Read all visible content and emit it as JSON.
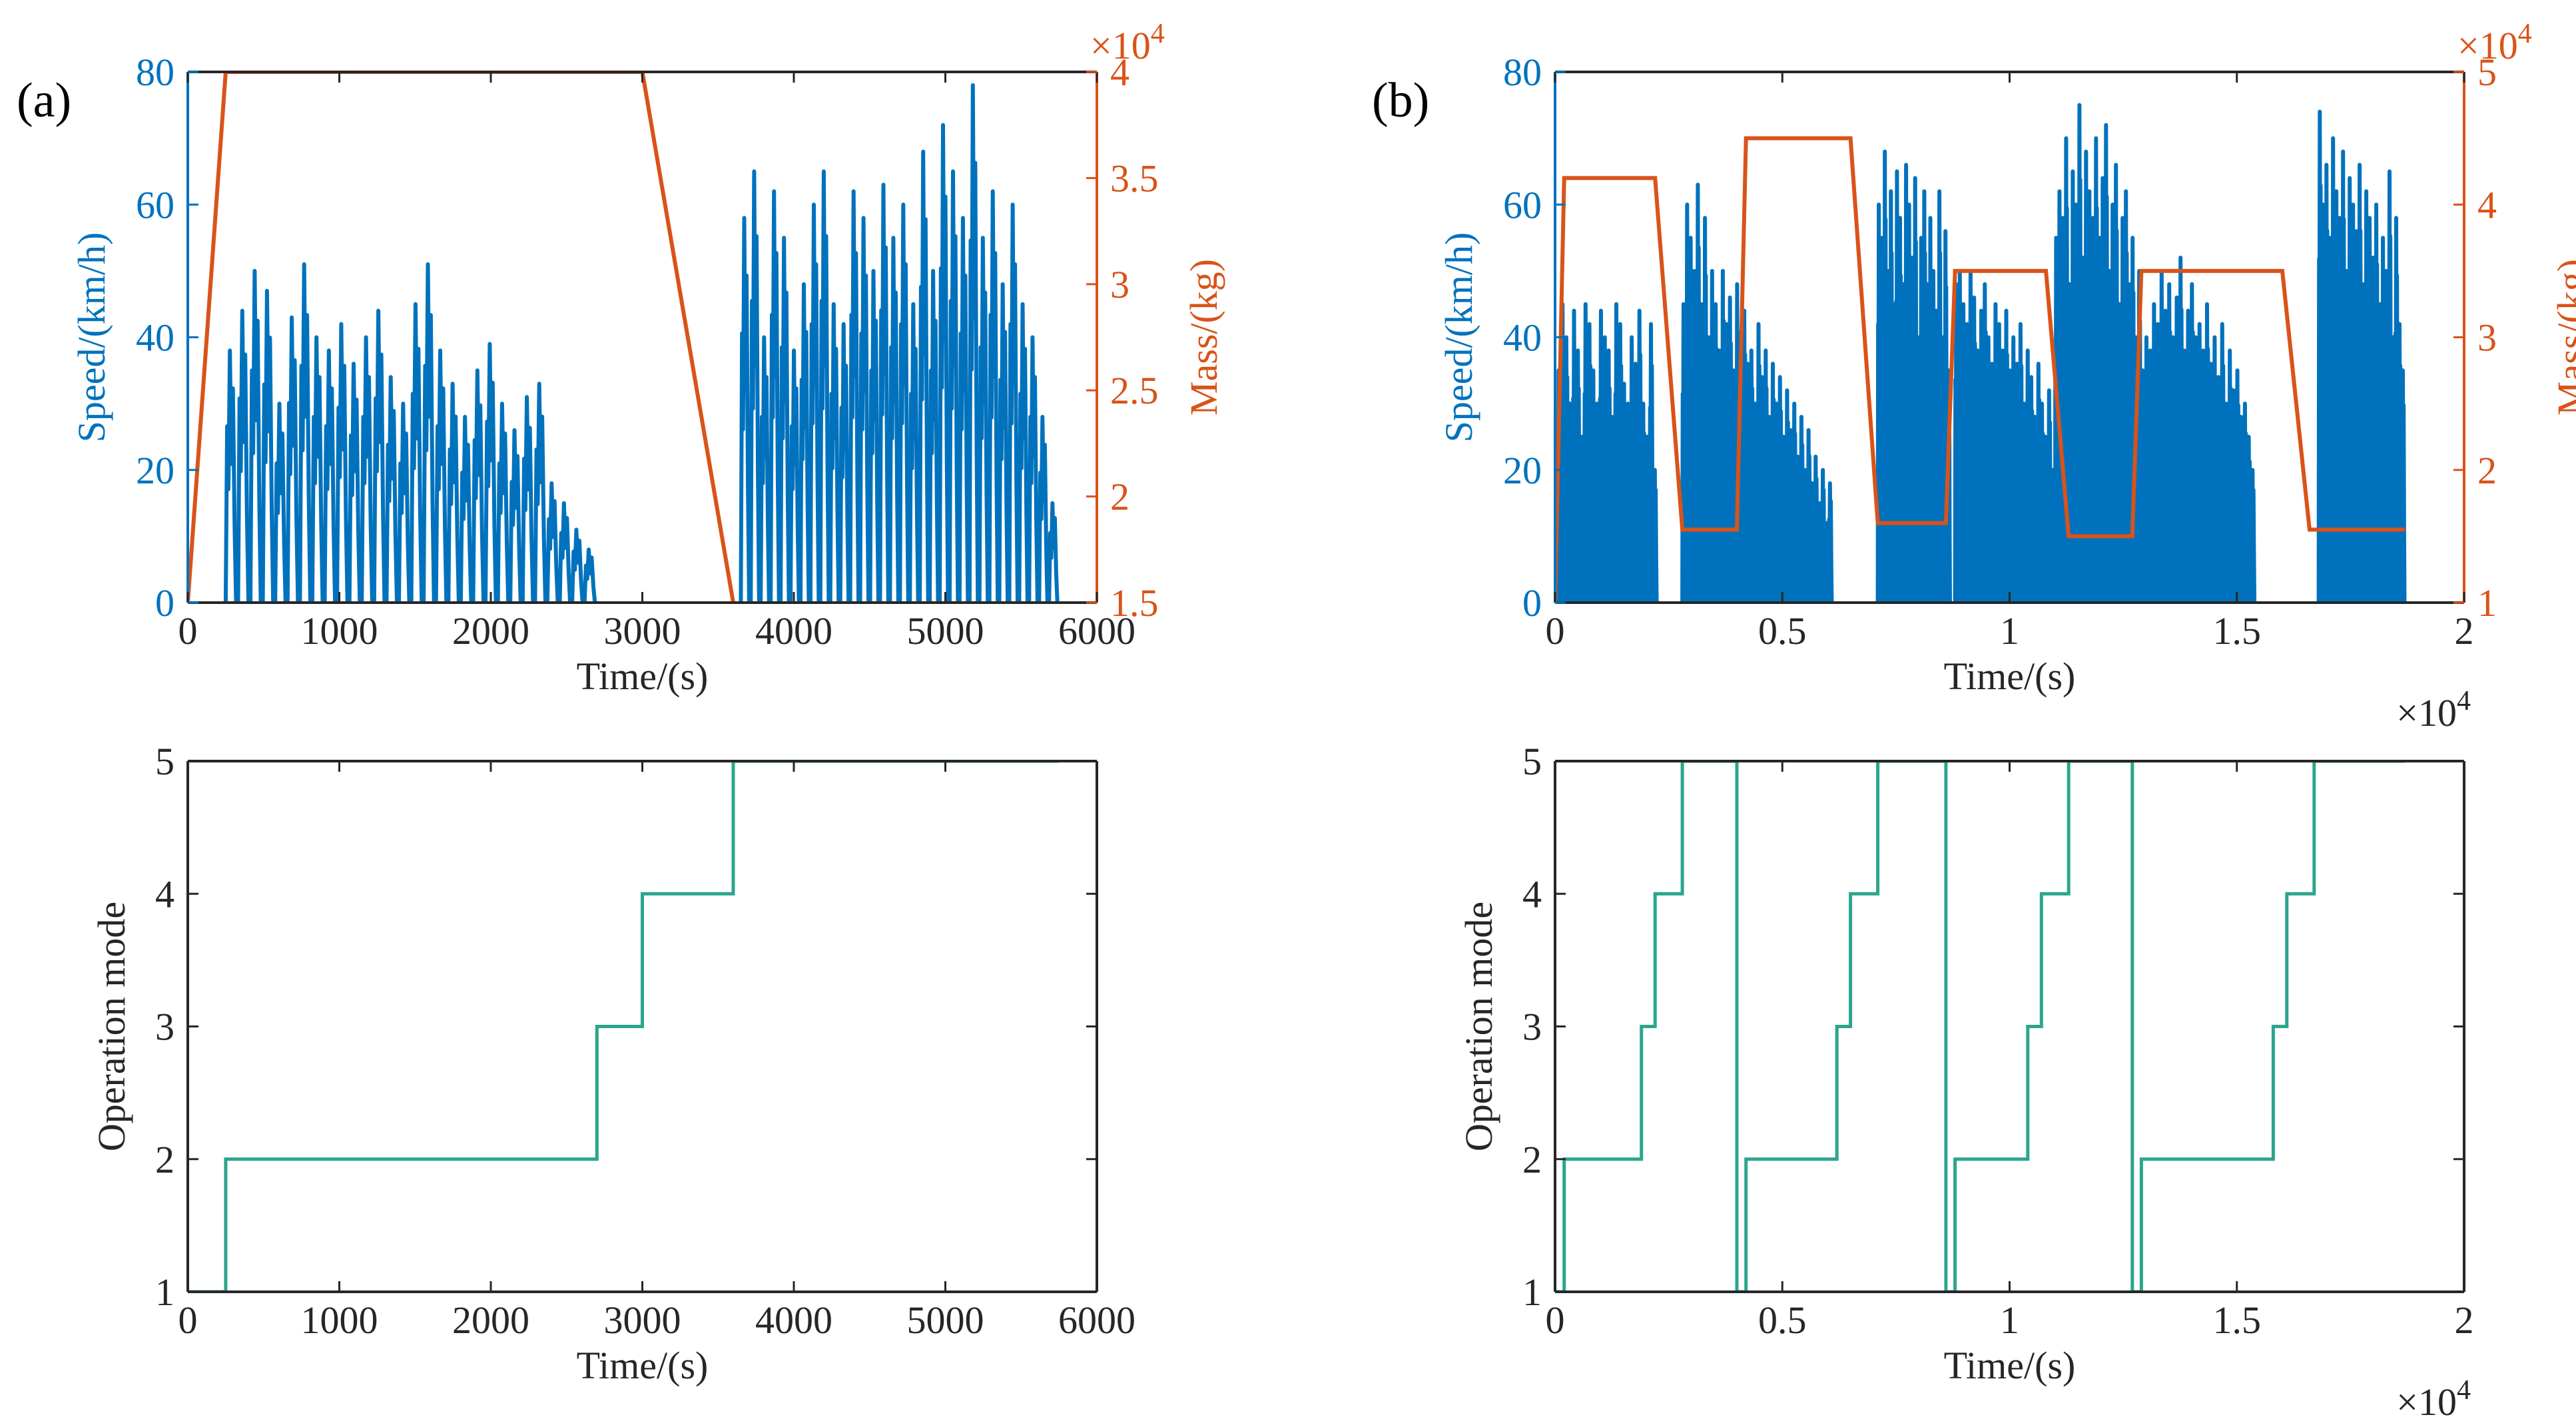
{
  "figure": {
    "panel_a_label": "(a)",
    "panel_b_label": "(b)"
  },
  "colors": {
    "speed": "#0072BD",
    "mass": "#D95319",
    "mode": "#2CA58D",
    "axis": "#262626"
  },
  "chart_data": [
    {
      "id": "a_top",
      "type": "line",
      "title": "",
      "xlabel": "Time/(s)",
      "ylabel_left": "Speed/(km/h)",
      "ylabel_right": "Mass/(kg)",
      "xlim": [
        0,
        6000
      ],
      "xticks": [
        0,
        1000,
        2000,
        3000,
        4000,
        5000,
        6000
      ],
      "xtick_labels": [
        "0",
        "1000",
        "2000",
        "3000",
        "4000",
        "5000",
        "6000"
      ],
      "x_multiplier": "",
      "ylim_left": [
        0,
        80
      ],
      "yticks_left": [
        0,
        20,
        40,
        60,
        80
      ],
      "ytick_labels_left": [
        "0",
        "20",
        "40",
        "60",
        "80"
      ],
      "ylim_right": [
        15000,
        40000
      ],
      "yticks_right": [
        15000,
        20000,
        25000,
        30000,
        35000,
        40000
      ],
      "ytick_labels_right": [
        "1.5",
        "2",
        "2.5",
        "3",
        "3.5",
        "4"
      ],
      "right_multiplier": "×10",
      "right_multiplier_exp": "4",
      "speed_segments": [
        {
          "start": 250,
          "end": 2700,
          "cycles": 30,
          "decay": 0.45,
          "peaks": [
            38,
            44,
            50,
            47,
            30,
            43,
            51,
            40,
            38,
            42,
            36,
            40,
            44,
            34,
            30,
            45,
            51,
            38,
            33,
            28,
            35,
            39,
            30,
            26,
            31,
            33,
            18,
            15,
            11,
            8
          ]
        },
        {
          "start": 3650,
          "end": 5750,
          "cycles": 32,
          "decay": 0.0,
          "peaks": [
            58,
            65,
            40,
            62,
            55,
            38,
            48,
            60,
            65,
            45,
            42,
            62,
            58,
            50,
            63,
            55,
            60,
            45,
            68,
            50,
            72,
            65,
            58,
            78,
            55,
            62,
            48,
            60,
            45,
            40,
            28,
            15
          ]
        }
      ],
      "mass_series": {
        "x": [
          0,
          250,
          3000,
          3600
        ],
        "y": [
          15000,
          40000,
          40000,
          15000
        ]
      }
    },
    {
      "id": "b_top",
      "type": "line",
      "title": "",
      "xlabel": "Time/(s)",
      "ylabel_left": "Speed/(km/h)",
      "ylabel_right": "Mass/(kg)",
      "xlim": [
        0,
        20000
      ],
      "xticks": [
        0,
        5000,
        10000,
        15000,
        20000
      ],
      "xtick_labels": [
        "0",
        "0.5",
        "1",
        "1.5",
        "2"
      ],
      "x_multiplier": "×10",
      "x_multiplier_exp": "4",
      "ylim_left": [
        0,
        80
      ],
      "yticks_left": [
        0,
        20,
        40,
        60,
        80
      ],
      "ytick_labels_left": [
        "0",
        "20",
        "40",
        "60",
        "80"
      ],
      "ylim_right": [
        10000,
        50000
      ],
      "yticks_right": [
        10000,
        20000,
        30000,
        40000,
        50000
      ],
      "ytick_labels_right": [
        "1",
        "2",
        "3",
        "4",
        "5"
      ],
      "right_multiplier": "×10",
      "right_multiplier_exp": "4",
      "speed_segments": [
        {
          "start": 50,
          "end": 2250,
          "cycles": 26,
          "decay": 0.0,
          "peaks": [
            35,
            45,
            40,
            30,
            44,
            38,
            25,
            45,
            42,
            35,
            30,
            44,
            40,
            38,
            28,
            45,
            42,
            33,
            30,
            40,
            36,
            44,
            30,
            25,
            42,
            20
          ]
        },
        {
          "start": 2800,
          "end": 6100,
          "cycles": 42,
          "decay": 0.0,
          "peaks": [
            45,
            60,
            55,
            50,
            63,
            45,
            58,
            40,
            50,
            45,
            38,
            50,
            42,
            46,
            35,
            48,
            40,
            44,
            36,
            38,
            30,
            42,
            34,
            38,
            28,
            36,
            30,
            34,
            25,
            32,
            26,
            30,
            22,
            28,
            20,
            26,
            18,
            22,
            15,
            20,
            12,
            18
          ]
        },
        {
          "start": 7100,
          "end": 8700,
          "cycles": 24,
          "decay": 0.0,
          "peaks": [
            60,
            55,
            68,
            50,
            62,
            45,
            65,
            58,
            48,
            66,
            60,
            52,
            64,
            40,
            55,
            62,
            48,
            58,
            50,
            44,
            62,
            40,
            56,
            35
          ]
        },
        {
          "start": 8800,
          "end": 11000,
          "cycles": 28,
          "decay": 0.0,
          "peaks": [
            48,
            50,
            45,
            42,
            50,
            46,
            38,
            44,
            48,
            40,
            36,
            45,
            42,
            38,
            44,
            35,
            40,
            36,
            42,
            30,
            38,
            34,
            28,
            36,
            30,
            25,
            32,
            20
          ]
        },
        {
          "start": 11000,
          "end": 12900,
          "cycles": 26,
          "decay": 0.0,
          "peaks": [
            55,
            62,
            58,
            70,
            48,
            65,
            60,
            75,
            52,
            68,
            62,
            58,
            70,
            55,
            64,
            72,
            50,
            60,
            66,
            45,
            58,
            62,
            48,
            55,
            40,
            50
          ]
        },
        {
          "start": 12900,
          "end": 15400,
          "cycles": 30,
          "decay": 0.0,
          "peaks": [
            35,
            40,
            38,
            45,
            42,
            50,
            44,
            48,
            40,
            46,
            52,
            38,
            44,
            48,
            40,
            42,
            38,
            45,
            36,
            40,
            34,
            42,
            30,
            38,
            32,
            35,
            28,
            30,
            25,
            20
          ]
        },
        {
          "start": 16800,
          "end": 18700,
          "cycles": 26,
          "decay": 0.0,
          "peaks": [
            74,
            60,
            66,
            55,
            70,
            62,
            58,
            68,
            50,
            64,
            60,
            56,
            66,
            48,
            62,
            58,
            52,
            60,
            45,
            55,
            50,
            65,
            40,
            58,
            42,
            35
          ]
        }
      ],
      "mass_series": {
        "x": [
          0,
          200,
          2200,
          2800,
          4000,
          4200,
          6500,
          7100,
          8600,
          8800,
          10800,
          11300,
          12700,
          12900,
          16000,
          16600,
          18700
        ],
        "y": [
          10000,
          42000,
          42000,
          15500,
          15500,
          45000,
          45000,
          16000,
          16000,
          35000,
          35000,
          15000,
          15000,
          35000,
          35000,
          15500,
          15500
        ]
      }
    },
    {
      "id": "a_bottom",
      "type": "line",
      "title": "",
      "xlabel": "Time/(s)",
      "ylabel": "Operation mode",
      "xlim": [
        0,
        6000
      ],
      "xticks": [
        0,
        1000,
        2000,
        3000,
        4000,
        5000,
        6000
      ],
      "xtick_labels": [
        "0",
        "1000",
        "2000",
        "3000",
        "4000",
        "5000",
        "6000"
      ],
      "x_multiplier": "",
      "ylim": [
        1,
        5
      ],
      "yticks": [
        1,
        2,
        3,
        4,
        5
      ],
      "ytick_labels": [
        "1",
        "2",
        "3",
        "4",
        "5"
      ],
      "mode_steps": {
        "x": [
          0,
          250,
          2700,
          3000,
          3600,
          5750
        ],
        "y": [
          1,
          2,
          3,
          4,
          5,
          5
        ]
      }
    },
    {
      "id": "b_bottom",
      "type": "line",
      "title": "",
      "xlabel": "Time/(s)",
      "ylabel": "Operation mode",
      "xlim": [
        0,
        20000
      ],
      "xticks": [
        0,
        5000,
        10000,
        15000,
        20000
      ],
      "xtick_labels": [
        "0",
        "0.5",
        "1",
        "1.5",
        "2"
      ],
      "x_multiplier": "×10",
      "x_multiplier_exp": "4",
      "ylim": [
        1,
        5
      ],
      "yticks": [
        1,
        2,
        3,
        4,
        5
      ],
      "ytick_labels": [
        "1",
        "2",
        "3",
        "4",
        "5"
      ],
      "mode_steps": {
        "x": [
          0,
          200,
          1900,
          2200,
          2800,
          4000,
          4200,
          6200,
          6500,
          7100,
          8600,
          8800,
          10400,
          10700,
          11300,
          12700,
          12900,
          15800,
          16100,
          16700,
          18700
        ],
        "y": [
          1,
          2,
          3,
          4,
          5,
          1,
          2,
          3,
          4,
          5,
          1,
          2,
          3,
          4,
          5,
          1,
          2,
          3,
          4,
          5,
          5
        ]
      }
    }
  ]
}
